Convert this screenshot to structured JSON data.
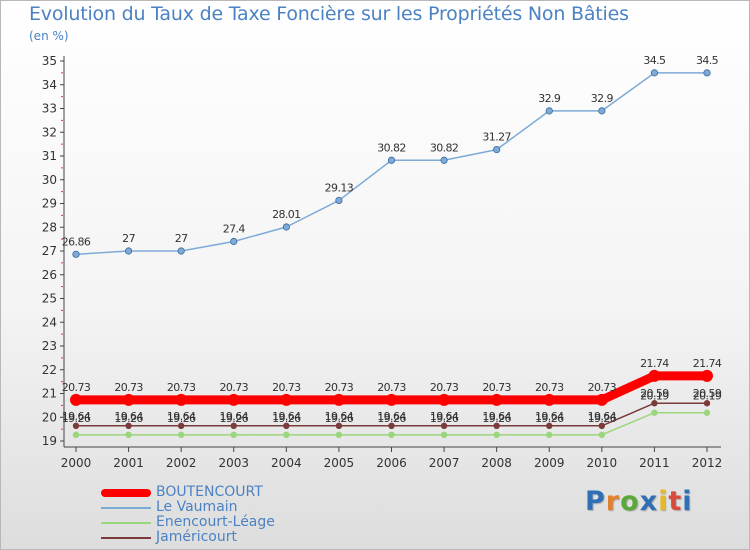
{
  "chart_data": {
    "type": "line",
    "title": "Evolution du Taux de Taxe Foncière sur les Propriétés Non Bâties",
    "ylabel": "(en %)",
    "xlabel": "",
    "ylim": [
      19,
      35
    ],
    "yticks": [
      "19",
      "20",
      "21",
      "22",
      "23",
      "24",
      "25",
      "26",
      "27",
      "28",
      "29",
      "30",
      "31",
      "32",
      "33",
      "34",
      "35"
    ],
    "x": [
      "2000",
      "2001",
      "2002",
      "2003",
      "2004",
      "2005",
      "2006",
      "2007",
      "2008",
      "2009",
      "2010",
      "2011",
      "2012"
    ],
    "series": [
      {
        "name": "BOUTENCOURT",
        "color": "#ff0000",
        "values": [
          20.73,
          20.73,
          20.73,
          20.73,
          20.73,
          20.73,
          20.73,
          20.73,
          20.73,
          20.73,
          20.73,
          21.74,
          21.74
        ],
        "labels": [
          "20.73",
          "20.73",
          "20.73",
          "20.73",
          "20.73",
          "20.73",
          "20.73",
          "20.73",
          "20.73",
          "20.73",
          "20.73",
          "21.74",
          "21.74"
        ]
      },
      {
        "name": "Le Vaumain",
        "color": "#7eaad8",
        "values": [
          26.86,
          27,
          27,
          27.4,
          28.01,
          29.13,
          30.82,
          30.82,
          31.27,
          32.9,
          32.9,
          34.5,
          34.5
        ],
        "labels": [
          "26.86",
          "27",
          "27",
          "27.4",
          "28.01",
          "29.13",
          "30.82",
          "30.82",
          "31.27",
          "32.9",
          "32.9",
          "34.5",
          "34.5"
        ]
      },
      {
        "name": "Enencourt-Léage",
        "color": "#9ad67c",
        "values": [
          19.26,
          19.26,
          19.26,
          19.26,
          19.26,
          19.26,
          19.26,
          19.26,
          19.26,
          19.26,
          19.26,
          20.19,
          20.19
        ],
        "labels": [
          "19.26",
          "19.26",
          "19.26",
          "19.26",
          "19.26",
          "19.26",
          "19.26",
          "19.26",
          "19.26",
          "19.26",
          "19.26",
          "20.19",
          "20.19"
        ]
      },
      {
        "name": "Jaméricourt",
        "color": "#7a3b3b",
        "values": [
          19.64,
          19.64,
          19.64,
          19.64,
          19.64,
          19.64,
          19.64,
          19.64,
          19.64,
          19.64,
          19.64,
          20.59,
          20.59
        ],
        "labels": [
          "19.64",
          "19.64",
          "19.64",
          "19.64",
          "19.64",
          "19.64",
          "19.64",
          "19.64",
          "19.64",
          "19.64",
          "19.64",
          "20.59",
          "20.59"
        ]
      }
    ]
  },
  "brand": {
    "letters": [
      "P",
      "r",
      "o",
      "x",
      "i",
      "t",
      "i"
    ],
    "colors": [
      "#2f6fb5",
      "#e0812f",
      "#5aa83c",
      "#2f6fb5",
      "#e5b82d",
      "#d84a3a",
      "#2f6fb5"
    ]
  }
}
